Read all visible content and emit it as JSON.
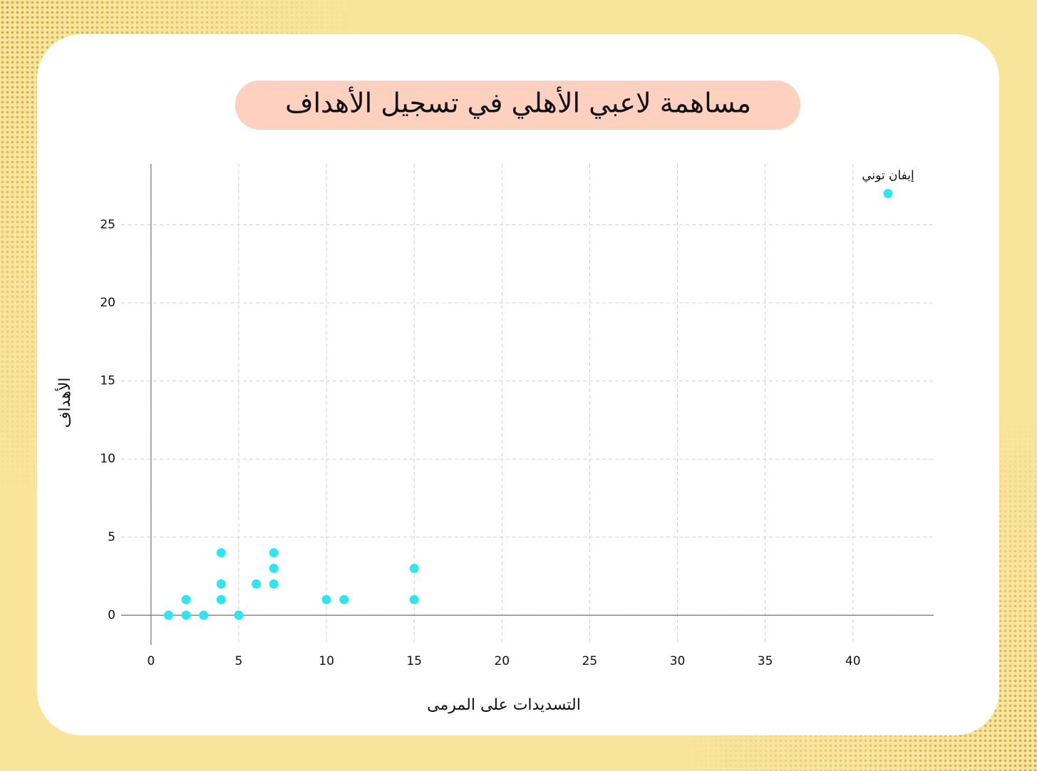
{
  "chart_data": {
    "type": "scatter",
    "title": "مساهمة لاعبي الأهلي في تسجيل الأهداف",
    "x_label": "التسديدات على المرمى",
    "y_label": "الأهداف",
    "x": [
      1,
      2,
      2,
      3,
      4,
      4,
      4,
      5,
      6,
      7,
      7,
      7,
      10,
      11,
      15,
      15,
      42
    ],
    "values": [
      0,
      0,
      1,
      0,
      4,
      2,
      1,
      0,
      2,
      4,
      3,
      2,
      1,
      1,
      3,
      1,
      27
    ],
    "point_labels": [
      null,
      null,
      null,
      null,
      null,
      null,
      null,
      null,
      null,
      null,
      null,
      null,
      null,
      null,
      null,
      null,
      "إيفان توني"
    ],
    "color": "#2ee6f2",
    "xlim": [
      -1.7,
      44.6
    ],
    "ylim": [
      -1.9,
      28.9
    ],
    "xticks": [
      0,
      5,
      10,
      15,
      20,
      25,
      30,
      35,
      40
    ],
    "yticks": [
      0,
      5,
      10,
      15,
      20,
      25
    ],
    "grid": true
  }
}
